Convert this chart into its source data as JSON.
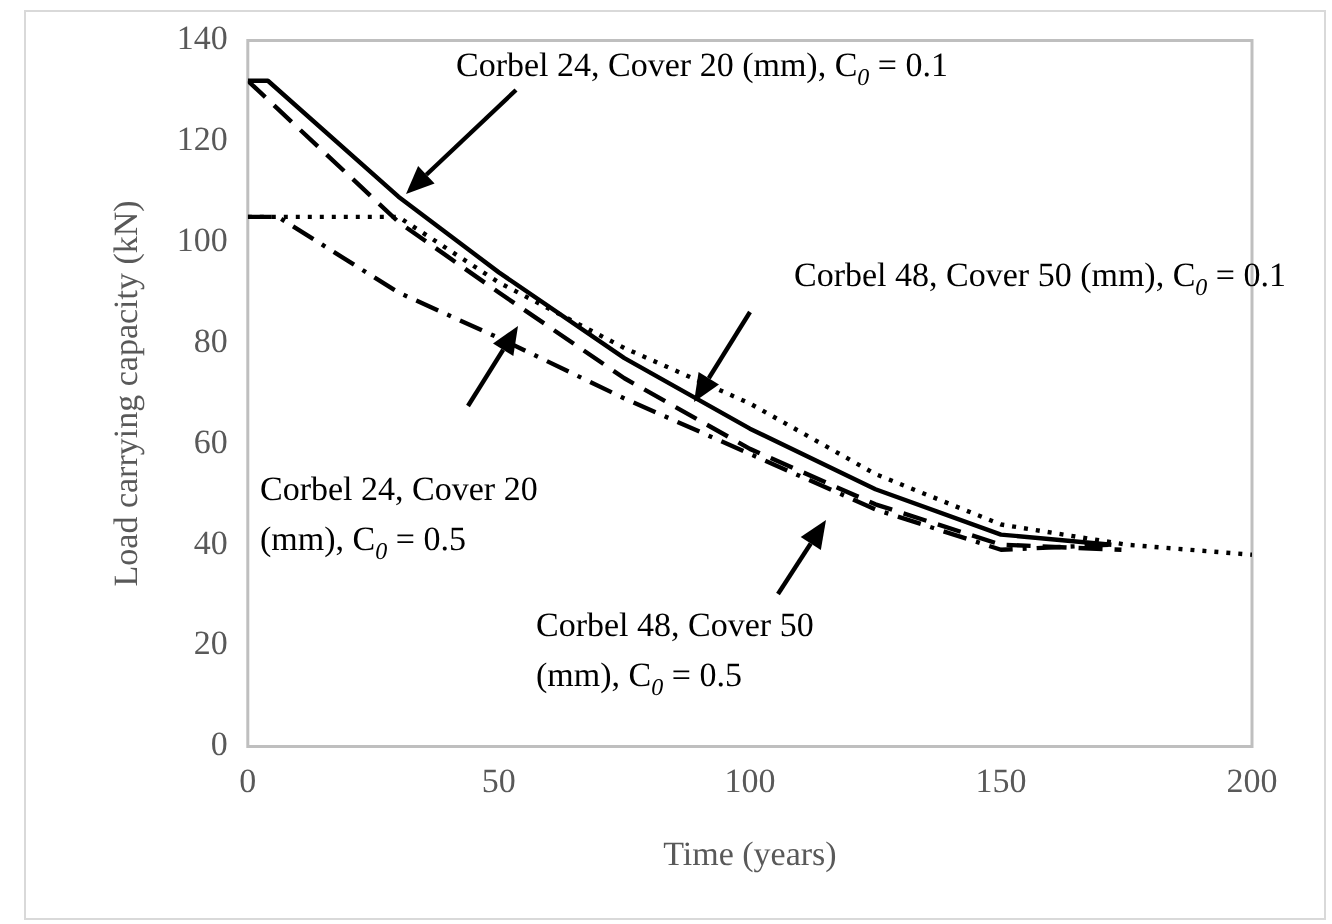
{
  "chart_data": {
    "type": "line",
    "xlabel": "Time (years)",
    "ylabel": "Load carrying capacity (kN)",
    "xlim": [
      0,
      200
    ],
    "xticks": [
      0,
      50,
      100,
      150,
      200
    ],
    "ylim": [
      0,
      140
    ],
    "yticks": [
      0,
      20,
      40,
      60,
      80,
      100,
      120,
      140
    ],
    "grid": false,
    "legend": false,
    "marker": "none",
    "series": [
      {
        "color": "#000000",
        "line_style": "solid",
        "x": [
          0,
          4,
          30,
          50,
          75,
          100,
          125,
          150,
          172
        ],
        "values": [
          132,
          132,
          109,
          94,
          77,
          63,
          51,
          42,
          40
        ]
      },
      {
        "color": "#000000",
        "line_style": "dashed",
        "x": [
          0,
          30,
          50,
          75,
          100,
          125,
          150,
          174
        ],
        "values": [
          132,
          104,
          90,
          73,
          59,
          48,
          40,
          39
        ]
      },
      {
        "color": "#000000",
        "line_style": "dotted",
        "x": [
          0,
          30,
          50,
          75,
          100,
          125,
          150,
          175,
          200
        ],
        "values": [
          105,
          105,
          92,
          79,
          68,
          54,
          44,
          40,
          38
        ]
      },
      {
        "color": "#000000",
        "line_style": "dashdot",
        "x": [
          0,
          6,
          30,
          50,
          75,
          100,
          125,
          150,
          172
        ],
        "values": [
          105,
          105,
          90,
          81,
          69,
          58,
          47,
          39,
          40
        ]
      }
    ],
    "annotations": [
      "Corbel 24, Cover 20 (mm), C$_{0}$ = 0.1",
      "Corbel 48, Cover 50 (mm), C$_{0}$ = 0.1",
      "Corbel 24, Cover 20 (mm), C$_{0}$ = 0.5",
      "Corbel 48, Cover 50 (mm), C$_{0}$ = 0.5"
    ]
  }
}
